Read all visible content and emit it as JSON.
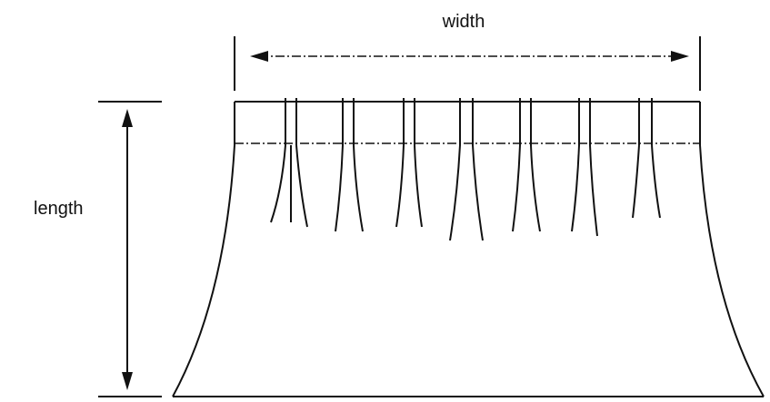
{
  "labels": {
    "width": "width",
    "length": "length"
  }
}
